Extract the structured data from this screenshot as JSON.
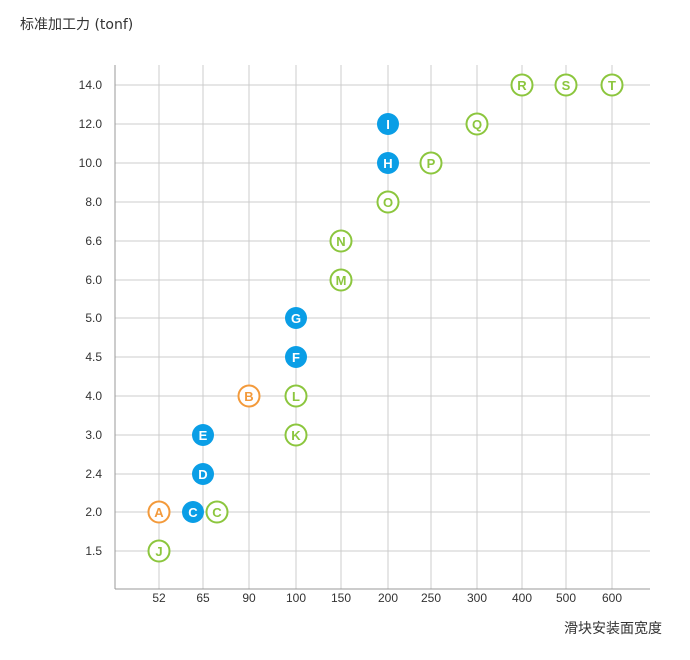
{
  "chart_data": {
    "type": "scatter",
    "ylabel": "标准加工力 (tonf)",
    "xlabel": "滑块安装面宽度",
    "categories_x": [
      "52",
      "65",
      "90",
      "100",
      "150",
      "200",
      "250",
      "300",
      "400",
      "500",
      "600"
    ],
    "categories_y": [
      "1.5",
      "2.0",
      "2.4",
      "3.0",
      "4.0",
      "4.5",
      "5.0",
      "6.0",
      "6.6",
      "8.0",
      "10.0",
      "12.0",
      "14.0"
    ],
    "grid": true,
    "colors": {
      "blue": "#0a9ee6",
      "green": "#8cc63e",
      "orange": "#f39a3b",
      "grid": "#cccccc",
      "axis": "#999999"
    },
    "points": [
      {
        "label": "A",
        "x": "52",
        "y": "2.0",
        "style": "orange"
      },
      {
        "label": "B",
        "x": "90",
        "y": "4.0",
        "style": "orange"
      },
      {
        "label": "C",
        "x": "65",
        "y": "2.0",
        "style": "blue"
      },
      {
        "label": "C",
        "x": "65",
        "y": "2.0",
        "style": "green"
      },
      {
        "label": "D",
        "x": "65",
        "y": "2.4",
        "style": "blue"
      },
      {
        "label": "E",
        "x": "65",
        "y": "3.0",
        "style": "blue"
      },
      {
        "label": "F",
        "x": "100",
        "y": "4.5",
        "style": "blue"
      },
      {
        "label": "G",
        "x": "100",
        "y": "5.0",
        "style": "blue"
      },
      {
        "label": "H",
        "x": "200",
        "y": "10.0",
        "style": "blue"
      },
      {
        "label": "I",
        "x": "200",
        "y": "12.0",
        "style": "blue"
      },
      {
        "label": "J",
        "x": "52",
        "y": "1.5",
        "style": "green"
      },
      {
        "label": "K",
        "x": "100",
        "y": "3.0",
        "style": "green"
      },
      {
        "label": "L",
        "x": "100",
        "y": "4.0",
        "style": "green"
      },
      {
        "label": "M",
        "x": "150",
        "y": "6.0",
        "style": "green"
      },
      {
        "label": "N",
        "x": "150",
        "y": "6.6",
        "style": "green"
      },
      {
        "label": "O",
        "x": "200",
        "y": "8.0",
        "style": "green"
      },
      {
        "label": "P",
        "x": "250",
        "y": "10.0",
        "style": "green"
      },
      {
        "label": "Q",
        "x": "300",
        "y": "12.0",
        "style": "green"
      },
      {
        "label": "R",
        "x": "400",
        "y": "14.0",
        "style": "green"
      },
      {
        "label": "S",
        "x": "500",
        "y": "14.0",
        "style": "green"
      },
      {
        "label": "T",
        "x": "600",
        "y": "14.0",
        "style": "green"
      }
    ]
  }
}
